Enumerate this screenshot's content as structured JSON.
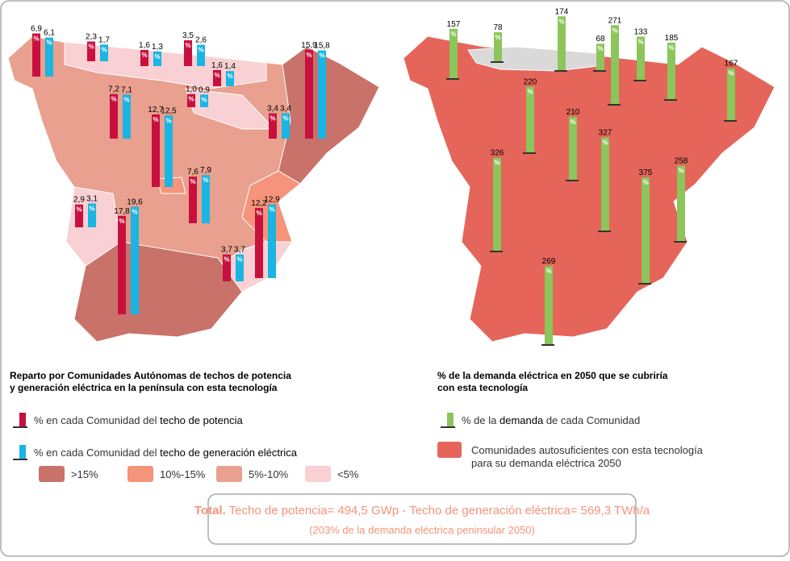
{
  "left_map": {
    "title": [
      "Reparto por Comunidades Autónomas de techos de potencia",
      "y generación eléctrica en la península con esta tecnología"
    ],
    "unit": "%",
    "power_color": "#c8103e",
    "generation_color": "#19b5e3",
    "regions": [
      {
        "power": 6.9,
        "power_label": "6,9",
        "generation": 6.1,
        "generation_label": "6,1"
      },
      {
        "power": 2.3,
        "power_label": "2,3",
        "generation": 1.7,
        "generation_label": "1,7"
      },
      {
        "power": 1.6,
        "power_label": "1,6",
        "generation": 1.3,
        "generation_label": "1,3"
      },
      {
        "power": 3.5,
        "power_label": "3,5",
        "generation": 2.6,
        "generation_label": "2,6"
      },
      {
        "power": 15.9,
        "power_label": "15,9",
        "generation": 15.8,
        "generation_label": "15,8"
      },
      {
        "power": 1.6,
        "power_label": "1,6",
        "generation": 1.4,
        "generation_label": "1,4"
      },
      {
        "power": 7.2,
        "power_label": "7,2",
        "generation": 7.1,
        "generation_label": "7,1"
      },
      {
        "power": 12.7,
        "power_label": "12,7",
        "generation": 12.5,
        "generation_label": "12,5"
      },
      {
        "power": 1.0,
        "power_label": "1,0",
        "generation": 0.9,
        "generation_label": "0,9"
      },
      {
        "power": 3.4,
        "power_label": "3,4",
        "generation": 3.4,
        "generation_label": "3,4"
      },
      {
        "power": 7.6,
        "power_label": "7,6",
        "generation": 7.9,
        "generation_label": "7,9"
      },
      {
        "power": 12.2,
        "power_label": "12,2",
        "generation": 12.9,
        "generation_label": "12,9"
      },
      {
        "power": 2.9,
        "power_label": "2,9",
        "generation": 3.1,
        "generation_label": "3,1"
      },
      {
        "power": 17.8,
        "power_label": "17,8",
        "generation": 19.6,
        "generation_label": "19,6"
      },
      {
        "power": 3.7,
        "power_label": "3,7",
        "generation": 3.7,
        "generation_label": "3,7"
      }
    ],
    "legend": {
      "power": [
        "% en cada Comunidad del ",
        "techo de potencia"
      ],
      "generation": [
        "% en cada Comunidad del ",
        "techo de generación eléctrica"
      ]
    },
    "scale": [
      {
        "label": ">15%",
        "color": "#c9726a"
      },
      {
        "label": "10%-15%",
        "color": "#f5947a"
      },
      {
        "label": "5%-10%",
        "color": "#e9a08e"
      },
      {
        "label": "<5%",
        "color": "#f9d0d3"
      }
    ]
  },
  "right_map": {
    "title": [
      "% de la demanda eléctrica en 2050 que se cubriría",
      "con esta tecnología"
    ],
    "unit": "%",
    "color": "#8cc55a",
    "map_color": "#e5655a",
    "values": [
      157,
      78,
      174,
      68,
      271,
      133,
      185,
      167,
      220,
      210,
      327,
      326,
      375,
      258,
      269
    ],
    "legend": {
      "demand": [
        "% de la ",
        "demanda",
        " de cada Comunidad"
      ],
      "self_sufficient": [
        "Comunidades autosuficientes con esta tecnología",
        "para su demanda eléctrica 2050"
      ]
    }
  },
  "total": {
    "bold": "Total.",
    "line1": " Techo de potencia= 494,5 GWp - Techo de generación eléctrica= 569,3 TWh/a",
    "line2": "(203% de la demanda eléctrica peninsular 2050)"
  }
}
